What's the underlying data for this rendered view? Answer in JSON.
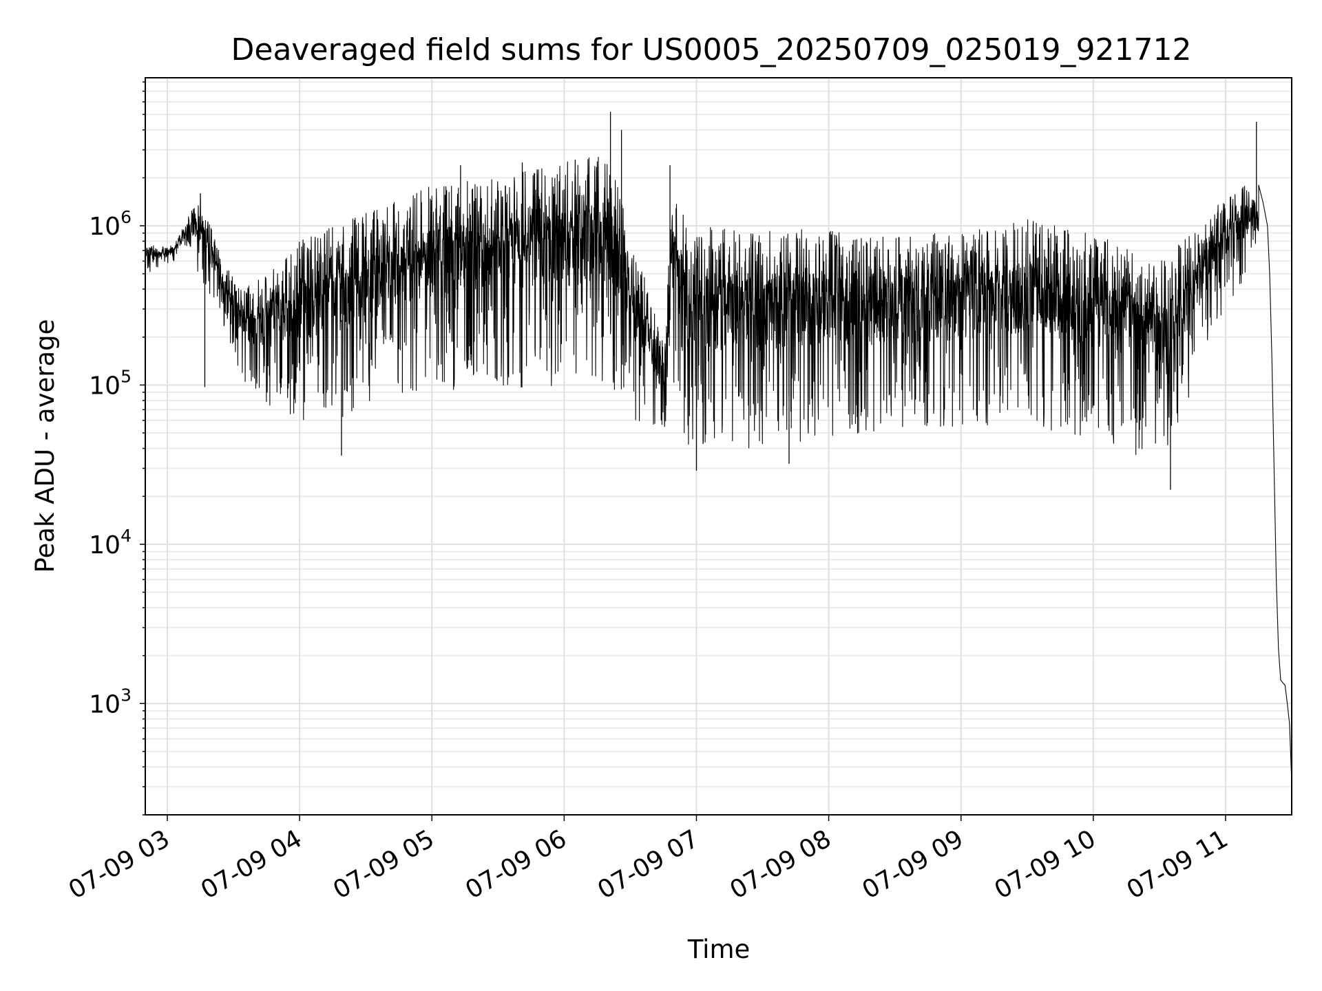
{
  "chart_data": {
    "type": "line",
    "title": "Deaveraged field sums for US0005_20250709_025019_921712",
    "xlabel": "Time",
    "ylabel": "Peak ADU - average",
    "y_scale": "log",
    "ylim": [
      200,
      8500000
    ],
    "xlim": [
      "2025-07-09 02:50",
      "2025-07-09 11:30"
    ],
    "grid": true,
    "grid_minor": true,
    "line_color": "#000000",
    "x_ticks": [
      {
        "label": "07-09 03",
        "time": "2025-07-09 03:00"
      },
      {
        "label": "07-09 04",
        "time": "2025-07-09 04:00"
      },
      {
        "label": "07-09 05",
        "time": "2025-07-09 05:00"
      },
      {
        "label": "07-09 06",
        "time": "2025-07-09 06:00"
      },
      {
        "label": "07-09 07",
        "time": "2025-07-09 07:00"
      },
      {
        "label": "07-09 08",
        "time": "2025-07-09 08:00"
      },
      {
        "label": "07-09 09",
        "time": "2025-07-09 09:00"
      },
      {
        "label": "07-09 10",
        "time": "2025-07-09 10:00"
      },
      {
        "label": "07-09 11",
        "time": "2025-07-09 11:00"
      }
    ],
    "y_ticks": [
      {
        "base": "10",
        "exp": "3",
        "value": 1000
      },
      {
        "base": "10",
        "exp": "4",
        "value": 10000
      },
      {
        "base": "10",
        "exp": "5",
        "value": 100000
      },
      {
        "base": "10",
        "exp": "6",
        "value": 1000000
      }
    ],
    "series": [
      {
        "envelope": [
          {
            "time": "2025-07-09 02:50",
            "low": 450000,
            "high": 750000
          },
          {
            "time": "2025-07-09 03:03",
            "low": 600000,
            "high": 750000
          },
          {
            "time": "2025-07-09 03:10",
            "low": 700000,
            "high": 1200000
          },
          {
            "time": "2025-07-09 03:15",
            "low": 450000,
            "high": 1500000
          },
          {
            "time": "2025-07-09 03:25",
            "low": 250000,
            "high": 600000
          },
          {
            "time": "2025-07-09 03:35",
            "low": 100000,
            "high": 400000
          },
          {
            "time": "2025-07-09 03:45",
            "low": 70000,
            "high": 500000
          },
          {
            "time": "2025-07-09 04:00",
            "low": 60000,
            "high": 800000
          },
          {
            "time": "2025-07-09 04:15",
            "low": 60000,
            "high": 1000000
          },
          {
            "time": "2025-07-09 04:30",
            "low": 70000,
            "high": 1200000
          },
          {
            "time": "2025-07-09 05:00",
            "low": 90000,
            "high": 1800000
          },
          {
            "time": "2025-07-09 05:30",
            "low": 100000,
            "high": 2000000
          },
          {
            "time": "2025-07-09 06:00",
            "low": 90000,
            "high": 2500000
          },
          {
            "time": "2025-07-09 06:20",
            "low": 100000,
            "high": 3000000
          },
          {
            "time": "2025-07-09 06:30",
            "low": 60000,
            "high": 900000
          },
          {
            "time": "2025-07-09 06:45",
            "low": 50000,
            "high": 200000
          },
          {
            "time": "2025-07-09 06:50",
            "low": 100000,
            "high": 2300000
          },
          {
            "time": "2025-07-09 06:55",
            "low": 40000,
            "high": 1000000
          },
          {
            "time": "2025-07-09 07:30",
            "low": 40000,
            "high": 950000
          },
          {
            "time": "2025-07-09 08:00",
            "low": 45000,
            "high": 950000
          },
          {
            "time": "2025-07-09 08:30",
            "low": 50000,
            "high": 900000
          },
          {
            "time": "2025-07-09 09:00",
            "low": 55000,
            "high": 900000
          },
          {
            "time": "2025-07-09 09:30",
            "low": 55000,
            "high": 1100000
          },
          {
            "time": "2025-07-09 10:00",
            "low": 45000,
            "high": 900000
          },
          {
            "time": "2025-07-09 10:20",
            "low": 30000,
            "high": 700000
          },
          {
            "time": "2025-07-09 10:30",
            "low": 30000,
            "high": 600000
          },
          {
            "time": "2025-07-09 10:45",
            "low": 90000,
            "high": 900000
          },
          {
            "time": "2025-07-09 11:00",
            "low": 300000,
            "high": 1600000
          },
          {
            "time": "2025-07-09 11:10",
            "low": 500000,
            "high": 1800000
          },
          {
            "time": "2025-07-09 11:15",
            "low": 900000,
            "high": 1500000
          }
        ],
        "spikes": [
          {
            "time": "2025-07-09 03:15",
            "value": 1600000
          },
          {
            "time": "2025-07-09 03:17",
            "value": 97000
          },
          {
            "time": "2025-07-09 04:19",
            "value": 36000
          },
          {
            "time": "2025-07-09 05:13",
            "value": 2400000
          },
          {
            "time": "2025-07-09 05:41",
            "value": 2500000
          },
          {
            "time": "2025-07-09 06:05",
            "value": 2600000
          },
          {
            "time": "2025-07-09 06:21",
            "value": 5200000
          },
          {
            "time": "2025-07-09 06:26",
            "value": 4000000
          },
          {
            "time": "2025-07-09 06:48",
            "value": 2400000
          },
          {
            "time": "2025-07-09 07:00",
            "value": 29000
          },
          {
            "time": "2025-07-09 07:42",
            "value": 32000
          },
          {
            "time": "2025-07-09 10:35",
            "value": 22000
          },
          {
            "time": "2025-07-09 11:14",
            "value": 4500000
          }
        ],
        "tail": [
          {
            "time": "2025-07-09 11:15",
            "value": 1800000
          },
          {
            "time": "2025-07-09 11:17",
            "value": 1400000
          },
          {
            "time": "2025-07-09 11:19",
            "value": 1000000
          },
          {
            "time": "2025-07-09 11:20",
            "value": 500000
          },
          {
            "time": "2025-07-09 11:21",
            "value": 150000
          },
          {
            "time": "2025-07-09 11:22",
            "value": 30000
          },
          {
            "time": "2025-07-09 11:23",
            "value": 6000
          },
          {
            "time": "2025-07-09 11:24",
            "value": 2200
          },
          {
            "time": "2025-07-09 11:25",
            "value": 1400
          },
          {
            "time": "2025-07-09 11:27",
            "value": 1300
          },
          {
            "time": "2025-07-09 11:28",
            "value": 1000
          },
          {
            "time": "2025-07-09 11:29",
            "value": 750
          },
          {
            "time": "2025-07-09 11:30",
            "value": 320
          }
        ]
      }
    ]
  }
}
